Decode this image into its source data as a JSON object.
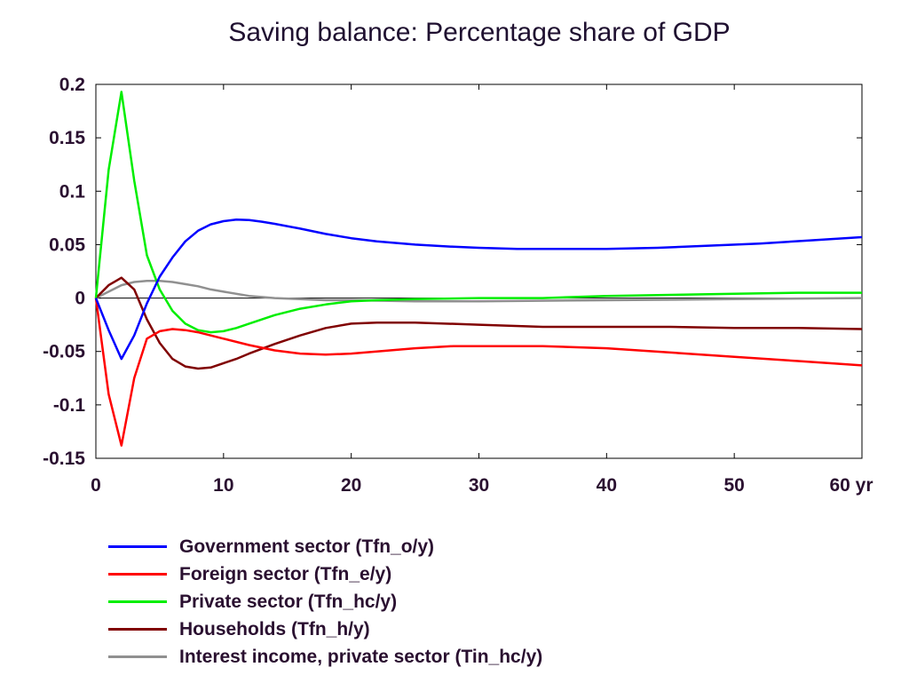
{
  "chart_data": {
    "type": "line",
    "title": "Saving balance: Percentage share of GDP",
    "xlabel": "",
    "ylabel": "",
    "xlim": [
      0,
      60
    ],
    "ylim": [
      -0.15,
      0.2
    ],
    "x_ticks": [
      0,
      10,
      20,
      30,
      40,
      50,
      60
    ],
    "x_tick_labels": [
      "0",
      "10",
      "20",
      "30",
      "40",
      "50",
      "60 yr"
    ],
    "y_ticks": [
      0.2,
      0.15,
      0.1,
      0.05,
      0,
      -0.05,
      -0.1,
      -0.15
    ],
    "y_tick_labels": [
      "0.2",
      "0.15",
      "0.1",
      "0.05",
      "0",
      "-0.05",
      "-0.1",
      "-0.15"
    ],
    "grid": false,
    "zero_line": true,
    "legend_position": "bottom",
    "series": [
      {
        "name": "Government sector (Tfn_o/y)",
        "color": "#0000ff",
        "x": [
          0,
          1,
          2,
          3,
          4,
          5,
          6,
          7,
          8,
          9,
          10,
          11,
          12,
          13,
          14,
          16,
          18,
          20,
          22,
          25,
          28,
          30,
          33,
          36,
          40,
          44,
          48,
          52,
          56,
          60
        ],
        "y": [
          0,
          -0.03,
          -0.057,
          -0.035,
          -0.005,
          0.02,
          0.038,
          0.053,
          0.063,
          0.069,
          0.072,
          0.0735,
          0.073,
          0.0715,
          0.0695,
          0.065,
          0.06,
          0.056,
          0.053,
          0.05,
          0.048,
          0.047,
          0.046,
          0.046,
          0.046,
          0.047,
          0.049,
          0.051,
          0.054,
          0.057
        ]
      },
      {
        "name": "Foreign sector (Tfn_e/y)",
        "color": "#ff0000",
        "x": [
          0,
          1,
          2,
          3,
          4,
          5,
          6,
          7,
          8,
          9,
          10,
          12,
          14,
          16,
          18,
          20,
          22,
          25,
          28,
          30,
          35,
          40,
          45,
          50,
          55,
          60
        ],
        "y": [
          0,
          -0.09,
          -0.138,
          -0.075,
          -0.038,
          -0.031,
          -0.029,
          -0.03,
          -0.032,
          -0.035,
          -0.038,
          -0.044,
          -0.049,
          -0.052,
          -0.053,
          -0.052,
          -0.05,
          -0.047,
          -0.045,
          -0.045,
          -0.045,
          -0.047,
          -0.051,
          -0.055,
          -0.059,
          -0.063
        ]
      },
      {
        "name": "Private sector (Tfn_hc/y)",
        "color": "#00ee00",
        "x": [
          0,
          1,
          2,
          3,
          4,
          5,
          6,
          7,
          8,
          9,
          10,
          11,
          12,
          14,
          16,
          18,
          20,
          22,
          25,
          30,
          35,
          40,
          45,
          50,
          55,
          60
        ],
        "y": [
          0,
          0.12,
          0.193,
          0.11,
          0.04,
          0.008,
          -0.012,
          -0.024,
          -0.03,
          -0.032,
          -0.031,
          -0.028,
          -0.024,
          -0.016,
          -0.01,
          -0.006,
          -0.003,
          -0.002,
          -0.001,
          0,
          0,
          0.002,
          0.003,
          0.004,
          0.005,
          0.005
        ]
      },
      {
        "name": "Households (Tfn_h/y)",
        "color": "#800000",
        "x": [
          0,
          1,
          2,
          3,
          4,
          5,
          6,
          7,
          8,
          9,
          10,
          11,
          12,
          14,
          16,
          18,
          20,
          22,
          25,
          30,
          35,
          40,
          45,
          50,
          55,
          60
        ],
        "y": [
          0,
          0.012,
          0.019,
          0.008,
          -0.02,
          -0.042,
          -0.057,
          -0.064,
          -0.066,
          -0.065,
          -0.061,
          -0.057,
          -0.052,
          -0.043,
          -0.035,
          -0.028,
          -0.024,
          -0.023,
          -0.023,
          -0.025,
          -0.027,
          -0.027,
          -0.027,
          -0.028,
          -0.028,
          -0.029
        ]
      },
      {
        "name": "Interest income, private sector (Tin_hc/y)",
        "color": "#909090",
        "x": [
          0,
          1,
          2,
          3,
          4,
          5,
          6,
          7,
          8,
          9,
          10,
          12,
          14,
          16,
          18,
          20,
          25,
          30,
          40,
          50,
          60
        ],
        "y": [
          0,
          0.006,
          0.012,
          0.015,
          0.016,
          0.016,
          0.015,
          0.013,
          0.011,
          0.008,
          0.006,
          0.002,
          0,
          -0.001,
          -0.002,
          -0.002,
          -0.003,
          -0.003,
          -0.002,
          -0.001,
          0
        ]
      }
    ]
  }
}
